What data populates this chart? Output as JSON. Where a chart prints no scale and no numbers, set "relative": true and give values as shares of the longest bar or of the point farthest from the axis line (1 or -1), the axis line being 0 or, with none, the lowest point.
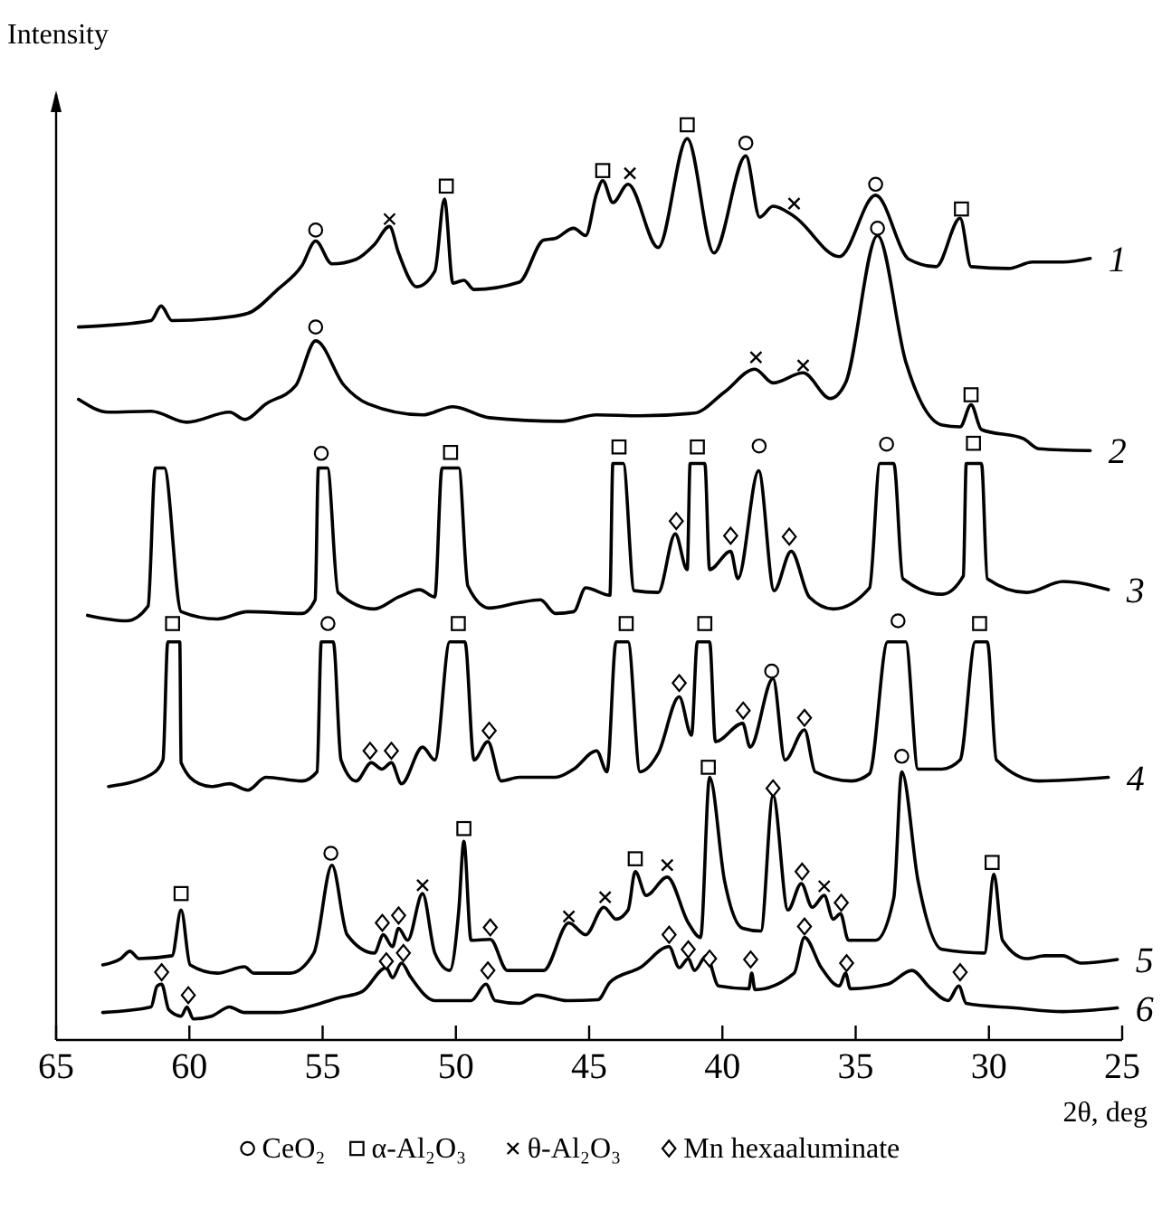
{
  "chart_data": {
    "type": "line",
    "relative": true,
    "xlabel": "2θ, deg",
    "ylabel": "Intensity",
    "xlim": [
      65,
      25
    ],
    "xticks": [
      65,
      60,
      55,
      50,
      45,
      40,
      35,
      30,
      25
    ],
    "legend": "bottom",
    "series": [
      {
        "name": "1",
        "color": "#000000",
        "x": [
          64.16,
          63.03,
          61.44,
          61.06,
          60.65,
          59.17,
          57.81,
          56.69,
          55.78,
          55.26,
          54.65,
          53.74,
          53.06,
          52.49,
          52.15,
          51.47,
          50.79,
          50.43,
          50.11,
          49.7,
          49.32,
          47.62,
          46.71,
          46.26,
          45.58,
          45.13,
          44.72,
          44.49,
          44.11,
          43.54,
          42.41,
          41.32,
          40.32,
          39.12,
          38.6,
          38.1,
          37.31,
          35.61,
          34.25,
          33.0,
          31.98,
          31.08,
          30.67,
          29.26,
          28.36,
          27.22,
          26.2
        ],
        "values": [
          0.779,
          0.781,
          0.786,
          0.802,
          0.786,
          0.788,
          0.794,
          0.82,
          0.846,
          0.873,
          0.848,
          0.853,
          0.869,
          0.889,
          0.86,
          0.823,
          0.84,
          0.919,
          0.827,
          0.83,
          0.82,
          0.828,
          0.874,
          0.876,
          0.887,
          0.879,
          0.925,
          0.939,
          0.915,
          0.935,
          0.866,
          0.985,
          0.86,
          0.966,
          0.899,
          0.911,
          0.9,
          0.856,
          0.923,
          0.853,
          0.845,
          0.898,
          0.845,
          0.843,
          0.85,
          0.85,
          0.854
        ]
      },
      {
        "name": "2",
        "color": "#000000",
        "x": [
          64.16,
          63.03,
          61.44,
          60.09,
          58.49,
          57.93,
          57.13,
          56.01,
          55.26,
          54.19,
          53.29,
          51.25,
          50.11,
          48.75,
          46.03,
          44.72,
          43.09,
          41.05,
          39.92,
          38.78,
          38.1,
          36.97,
          35.95,
          35.38,
          34.18,
          33.12,
          31.76,
          31.08,
          30.67,
          30.28,
          28.7,
          28.13,
          26.2
        ],
        "values": [
          0.7,
          0.686,
          0.687,
          0.675,
          0.686,
          0.678,
          0.695,
          0.715,
          0.764,
          0.715,
          0.695,
          0.683,
          0.692,
          0.68,
          0.676,
          0.683,
          0.682,
          0.685,
          0.708,
          0.733,
          0.718,
          0.729,
          0.701,
          0.718,
          0.879,
          0.741,
          0.672,
          0.67,
          0.694,
          0.667,
          0.657,
          0.646,
          0.644
        ]
      },
      {
        "name": "3",
        "color": "#000000",
        "x": [
          63.82,
          62.35,
          61.55,
          61.28,
          60.94,
          60.31,
          58.95,
          57.81,
          55.78,
          55.28,
          55.16,
          54.82,
          54.42,
          53.06,
          52.15,
          51.36,
          50.79,
          50.52,
          49.89,
          49.55,
          48.75,
          47.62,
          46.83,
          46.26,
          45.58,
          45.13,
          44.22,
          44.11,
          43.72,
          43.31,
          42.41,
          41.77,
          41.32,
          41.21,
          40.66,
          40.48,
          39.69,
          39.42,
          38.64,
          38.06,
          37.42,
          36.74,
          35.84,
          34.48,
          34.09,
          33.57,
          33.23,
          31.76,
          30.96,
          30.85,
          30.28,
          30.06,
          28.58,
          27.22,
          25.52
        ],
        "values": [
          0.464,
          0.458,
          0.474,
          0.625,
          0.625,
          0.468,
          0.46,
          0.468,
          0.466,
          0.481,
          0.625,
          0.625,
          0.489,
          0.471,
          0.484,
          0.492,
          0.484,
          0.625,
          0.625,
          0.496,
          0.472,
          0.478,
          0.481,
          0.466,
          0.468,
          0.494,
          0.486,
          0.63,
          0.63,
          0.491,
          0.489,
          0.553,
          0.514,
          0.63,
          0.63,
          0.514,
          0.534,
          0.504,
          0.622,
          0.491,
          0.534,
          0.484,
          0.471,
          0.494,
          0.63,
          0.63,
          0.504,
          0.487,
          0.507,
          0.63,
          0.63,
          0.504,
          0.489,
          0.501,
          0.492
        ]
      },
      {
        "name": "4",
        "color": "#000000",
        "x": [
          63.03,
          61.44,
          60.99,
          60.81,
          60.36,
          60.31,
          59.63,
          59.17,
          58.49,
          57.81,
          57.13,
          55.78,
          55.21,
          55.05,
          54.6,
          54.31,
          53.74,
          53.17,
          52.78,
          52.42,
          52.04,
          51.25,
          50.79,
          50.23,
          49.66,
          49.32,
          48.8,
          48.3,
          47.62,
          46.26,
          45.58,
          44.72,
          44.33,
          43.99,
          43.54,
          43.09,
          42.41,
          41.62,
          41.16,
          40.94,
          40.48,
          40.26,
          39.24,
          38.96,
          38.1,
          37.65,
          36.92,
          36.52,
          35.16,
          34.48,
          33.8,
          33.12,
          32.66,
          31.76,
          31.08,
          30.51,
          30.06,
          29.72,
          28.13,
          25.52
        ],
        "values": [
          0.277,
          0.29,
          0.306,
          0.435,
          0.435,
          0.303,
          0.28,
          0.277,
          0.28,
          0.273,
          0.287,
          0.283,
          0.293,
          0.435,
          0.435,
          0.306,
          0.283,
          0.303,
          0.296,
          0.303,
          0.28,
          0.32,
          0.306,
          0.435,
          0.435,
          0.306,
          0.326,
          0.283,
          0.287,
          0.287,
          0.296,
          0.316,
          0.293,
          0.435,
          0.435,
          0.293,
          0.313,
          0.375,
          0.333,
          0.435,
          0.435,
          0.326,
          0.346,
          0.32,
          0.395,
          0.306,
          0.339,
          0.293,
          0.283,
          0.291,
          0.435,
          0.435,
          0.296,
          0.296,
          0.306,
          0.435,
          0.435,
          0.306,
          0.283,
          0.287
        ]
      },
      {
        "name": "5",
        "color": "#000000",
        "x": [
          63.25,
          62.57,
          62.23,
          61.89,
          60.65,
          60.31,
          59.97,
          58.95,
          57.93,
          57.59,
          56.23,
          55.33,
          54.65,
          54.08,
          53.06,
          52.72,
          52.38,
          52.15,
          51.81,
          51.25,
          50.79,
          50.23,
          49.89,
          49.7,
          49.43,
          48.71,
          48.07,
          46.71,
          45.76,
          45.13,
          44.45,
          43.99,
          43.54,
          43.27,
          42.86,
          42.07,
          41.28,
          40.82,
          40.48,
          39.92,
          39.24,
          38.56,
          38.1,
          37.54,
          37.04,
          36.63,
          36.18,
          35.84,
          35.57,
          35.27,
          34.25,
          33.57,
          33.27,
          32.66,
          31.76,
          30.17,
          29.81,
          29.49,
          28.58,
          27.9,
          27.22,
          26.54,
          25.18
        ],
        "values": [
          0.082,
          0.089,
          0.097,
          0.089,
          0.092,
          0.142,
          0.082,
          0.073,
          0.08,
          0.073,
          0.073,
          0.095,
          0.191,
          0.115,
          0.095,
          0.115,
          0.102,
          0.122,
          0.109,
          0.16,
          0.095,
          0.076,
          0.142,
          0.217,
          0.109,
          0.11,
          0.076,
          0.076,
          0.128,
          0.115,
          0.145,
          0.132,
          0.142,
          0.184,
          0.158,
          0.178,
          0.128,
          0.112,
          0.287,
          0.174,
          0.122,
          0.119,
          0.267,
          0.142,
          0.171,
          0.145,
          0.158,
          0.132,
          0.138,
          0.109,
          0.109,
          0.155,
          0.293,
          0.174,
          0.099,
          0.095,
          0.181,
          0.109,
          0.089,
          0.092,
          0.092,
          0.084,
          0.088
        ]
      },
      {
        "name": "6",
        "color": "#000000",
        "x": [
          63.25,
          61.44,
          61.21,
          61.04,
          60.77,
          60.31,
          60.09,
          59.85,
          59.17,
          58.49,
          57.93,
          56.69,
          55.55,
          54.42,
          53.51,
          52.61,
          52.38,
          52.04,
          51.7,
          50.79,
          49.43,
          48.87,
          48.53,
          47.62,
          46.94,
          45.81,
          44.67,
          44.22,
          43.09,
          42.0,
          41.62,
          41.28,
          41.05,
          40.6,
          40.14,
          39.01,
          38.9,
          38.78,
          37.31,
          36.92,
          36.29,
          35.61,
          35.38,
          35.2,
          33.8,
          32.89,
          32.21,
          31.53,
          31.13,
          30.85,
          29.04,
          27.22,
          25.18
        ],
        "values": [
          0.03,
          0.036,
          0.059,
          0.061,
          0.033,
          0.026,
          0.036,
          0.023,
          0.026,
          0.036,
          0.03,
          0.03,
          0.036,
          0.046,
          0.053,
          0.079,
          0.068,
          0.084,
          0.069,
          0.043,
          0.043,
          0.061,
          0.043,
          0.04,
          0.049,
          0.043,
          0.044,
          0.063,
          0.079,
          0.102,
          0.079,
          0.089,
          0.076,
          0.092,
          0.059,
          0.056,
          0.073,
          0.055,
          0.073,
          0.112,
          0.079,
          0.059,
          0.073,
          0.056,
          0.061,
          0.076,
          0.057,
          0.043,
          0.059,
          0.04,
          0.035,
          0.031,
          0.035
        ]
      },
      {
        "name": "CeO₂",
        "type": "scatter",
        "marker": "circle",
        "color": "#000000",
        "x": [
          55.26,
          39.12,
          34.25,
          55.26,
          34.18,
          55.05,
          38.62,
          33.84,
          54.8,
          38.15,
          33.41,
          54.69,
          33.27
        ],
        "values": [
          0.885,
          0.98,
          0.935,
          0.779,
          0.887,
          0.641,
          0.649,
          0.651,
          0.455,
          0.403,
          0.458,
          0.204,
          0.31
        ]
      },
      {
        "name": "α-Al₂O₃",
        "type": "scatter",
        "marker": "square",
        "color": "#000000",
        "x": [
          50.36,
          44.49,
          41.32,
          31.03,
          30.67,
          50.2,
          43.88,
          40.94,
          30.58,
          60.63,
          49.91,
          43.61,
          40.66,
          30.35,
          60.31,
          49.7,
          43.27,
          40.53,
          29.88
        ],
        "values": [
          0.933,
          0.95,
          1.0,
          0.908,
          0.705,
          0.642,
          0.648,
          0.648,
          0.652,
          0.455,
          0.455,
          0.455,
          0.455,
          0.455,
          0.16,
          0.231,
          0.198,
          0.298,
          0.194
        ]
      },
      {
        "name": "θ-Al₂O₃",
        "type": "scatter",
        "marker": "cross",
        "color": "#000000",
        "x": [
          52.49,
          43.47,
          37.31,
          38.74,
          36.97,
          51.25,
          45.76,
          44.4,
          42.07,
          36.18
        ],
        "values": [
          0.897,
          0.947,
          0.914,
          0.746,
          0.737,
          0.169,
          0.135,
          0.156,
          0.191,
          0.168
        ]
      },
      {
        "name": "Mn hexaaluminate",
        "type": "scatter",
        "marker": "diamond",
        "color": "#000000",
        "x": [
          41.73,
          39.69,
          37.49,
          53.22,
          52.42,
          48.75,
          41.62,
          39.22,
          36.92,
          52.76,
          52.15,
          48.71,
          38.1,
          37.01,
          35.54,
          61.04,
          60.04,
          52.61,
          51.97,
          48.8,
          42.0,
          41.28,
          40.48,
          38.94,
          36.92,
          35.34,
          31.08
        ],
        "values": [
          0.567,
          0.551,
          0.55,
          0.316,
          0.316,
          0.338,
          0.39,
          0.36,
          0.352,
          0.128,
          0.136,
          0.123,
          0.275,
          0.184,
          0.15,
          0.074,
          0.049,
          0.086,
          0.095,
          0.076,
          0.115,
          0.099,
          0.089,
          0.088,
          0.124,
          0.084,
          0.074
        ]
      }
    ]
  }
}
